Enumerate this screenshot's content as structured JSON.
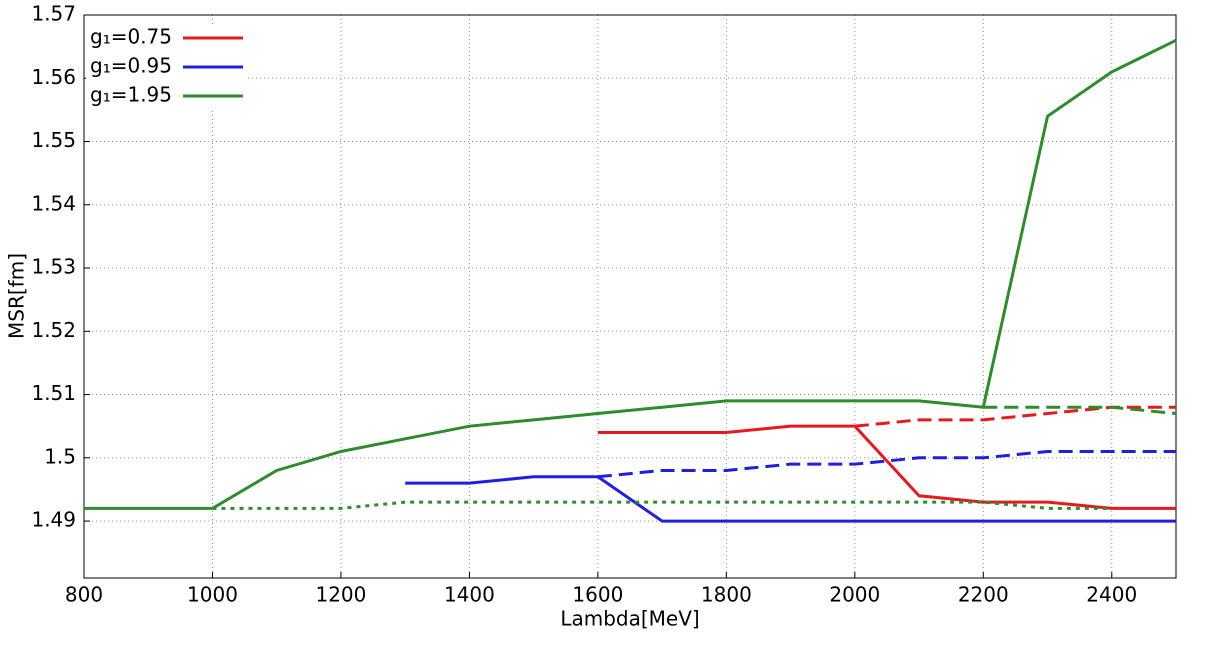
{
  "chart_data": {
    "type": "line",
    "x_label": "Lambda[MeV]",
    "y_label": "MSR[fm]",
    "x": [
      800,
      900,
      1000,
      1100,
      1200,
      1300,
      1400,
      1500,
      1600,
      1700,
      1800,
      1900,
      2000,
      2100,
      2200,
      2300,
      2400,
      2500
    ],
    "xlim": [
      800,
      2500
    ],
    "xticks": [
      800,
      1000,
      1200,
      1400,
      1600,
      1800,
      2000,
      2200,
      2400
    ],
    "ylim": [
      1.481,
      1.57
    ],
    "yticks": [
      1.49,
      1.5,
      1.51,
      1.52,
      1.53,
      1.54,
      1.55,
      1.56,
      1.57
    ],
    "grid": true,
    "legend": "upper left",
    "series": [
      {
        "name": "g₁=0.75",
        "color": "#e41a1c",
        "dash": "solid",
        "values": [
          null,
          null,
          null,
          null,
          null,
          null,
          null,
          null,
          1.504,
          1.504,
          1.504,
          1.505,
          1.505,
          1.494,
          1.493,
          1.493,
          1.492,
          1.492
        ]
      },
      {
        "name": "g₁=0.95",
        "color": "#1f1fe0",
        "dash": "solid",
        "values": [
          null,
          null,
          null,
          null,
          null,
          1.496,
          1.496,
          1.497,
          1.497,
          1.49,
          1.49,
          1.49,
          1.49,
          1.49,
          1.49,
          1.49,
          1.49,
          1.49
        ]
      },
      {
        "name": "g₁=1.95",
        "color": "#2e8b2e",
        "dash": "solid",
        "values": [
          1.492,
          1.492,
          1.492,
          1.498,
          1.501,
          1.503,
          1.505,
          1.506,
          1.507,
          1.508,
          1.509,
          1.509,
          1.509,
          1.509,
          1.508,
          1.554,
          1.561,
          1.566
        ]
      },
      {
        "color": "#e41a1c",
        "dash": "dashed",
        "values": [
          null,
          null,
          null,
          null,
          null,
          null,
          null,
          null,
          null,
          null,
          null,
          null,
          1.505,
          1.506,
          1.506,
          1.507,
          1.508,
          1.508
        ]
      },
      {
        "color": "#1f1fe0",
        "dash": "dashed",
        "values": [
          null,
          null,
          null,
          null,
          null,
          null,
          null,
          null,
          1.497,
          1.498,
          1.498,
          1.499,
          1.499,
          1.5,
          1.5,
          1.501,
          1.501,
          1.501
        ]
      },
      {
        "color": "#2e8b2e",
        "dash": "dashed",
        "values": [
          null,
          null,
          null,
          null,
          null,
          null,
          null,
          null,
          null,
          null,
          null,
          null,
          null,
          null,
          1.508,
          1.508,
          1.508,
          1.507
        ]
      },
      {
        "color": "#2e8b2e",
        "dash": "dotted",
        "values": [
          null,
          null,
          1.492,
          1.492,
          1.492,
          1.493,
          1.493,
          1.493,
          1.493,
          1.493,
          1.493,
          1.493,
          1.493,
          1.493,
          1.493,
          1.492,
          1.492,
          null
        ]
      }
    ]
  }
}
